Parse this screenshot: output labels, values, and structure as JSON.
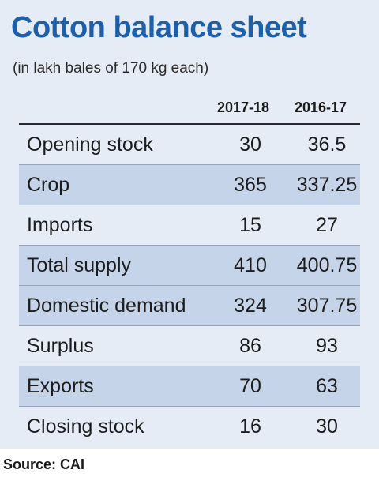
{
  "title": "Cotton balance sheet",
  "subtitle": "(in lakh bales of 170 kg each)",
  "columns": [
    "2017-18",
    "2016-17"
  ],
  "rows": [
    {
      "label": "Opening stock",
      "v2017": "30",
      "v2016": "36.5",
      "shaded": false
    },
    {
      "label": "Crop",
      "v2017": "365",
      "v2016": "337.25",
      "shaded": true
    },
    {
      "label": "Imports",
      "v2017": "15",
      "v2016": "27",
      "shaded": false
    },
    {
      "label": "Total supply",
      "v2017": "410",
      "v2016": "400.75",
      "shaded": true
    },
    {
      "label": "Domestic demand",
      "v2017": "324",
      "v2016": "307.75",
      "shaded": true
    },
    {
      "label": "Surplus",
      "v2017": "86",
      "v2016": "93",
      "shaded": false
    },
    {
      "label": "Exports",
      "v2017": "70",
      "v2016": "63",
      "shaded": true
    },
    {
      "label": "Closing stock",
      "v2017": "16",
      "v2016": "30",
      "shaded": false
    }
  ],
  "source": "Source: CAI",
  "colors": {
    "title": "#1d5fa8",
    "panel": "#e6ecf5",
    "shaded_row": "#c6d4ea"
  }
}
